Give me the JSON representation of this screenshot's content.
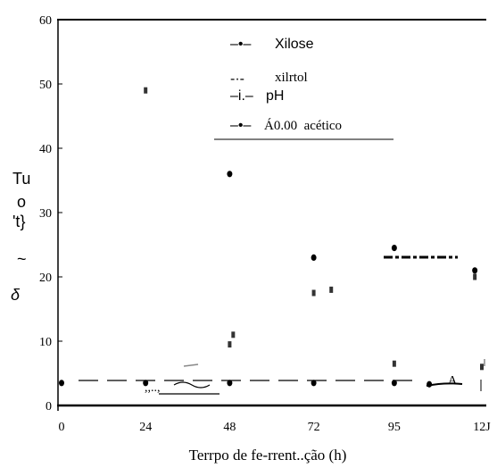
{
  "chart_data": {
    "type": "scatter",
    "xlabel": "Terrpo de fe-rrent..ção (h)",
    "ylabel_fragments": [
      "Tu",
      "o",
      "'t}",
      "~",
      "δ"
    ],
    "xlim": [
      0,
      120
    ],
    "ylim": [
      0,
      60
    ],
    "x_ticks": [
      "0",
      "24",
      "48",
      "72",
      "95",
      "12J"
    ],
    "y_ticks": [
      "0",
      "10",
      "20",
      "30",
      "40",
      "50",
      "60"
    ],
    "legend": {
      "placement": "top-center",
      "entries": [
        {
          "marker": "–•–",
          "label": "Xilose"
        },
        {
          "marker": "-·-",
          "label": "xilrtol"
        },
        {
          "marker": "–i.–",
          "label": "pH"
        },
        {
          "marker": "–•–",
          "label": "Á0.00  acético"
        }
      ]
    },
    "series": [
      {
        "name": "Xilose",
        "marker": "dot",
        "points": [
          [
            48,
            36
          ],
          [
            72,
            23
          ],
          [
            95,
            24.5
          ],
          [
            118,
            21
          ]
        ]
      },
      {
        "name": "xilrtol",
        "marker": "dash",
        "points": [
          [
            24,
            49
          ],
          [
            49,
            11
          ],
          [
            72,
            17.5
          ],
          [
            77,
            18
          ],
          [
            118,
            20
          ]
        ]
      },
      {
        "name": "pH",
        "marker": "dash",
        "points": [
          [
            48,
            9.5
          ],
          [
            95,
            6.5
          ],
          [
            120,
            6
          ]
        ]
      },
      {
        "name": "Á0.00  acético",
        "marker": "dot",
        "points": [
          [
            0,
            3.5
          ],
          [
            24,
            3.5
          ],
          [
            48,
            3.5
          ],
          [
            72,
            3.5
          ],
          [
            95,
            3.5
          ],
          [
            105,
            3.3
          ]
        ]
      }
    ]
  }
}
